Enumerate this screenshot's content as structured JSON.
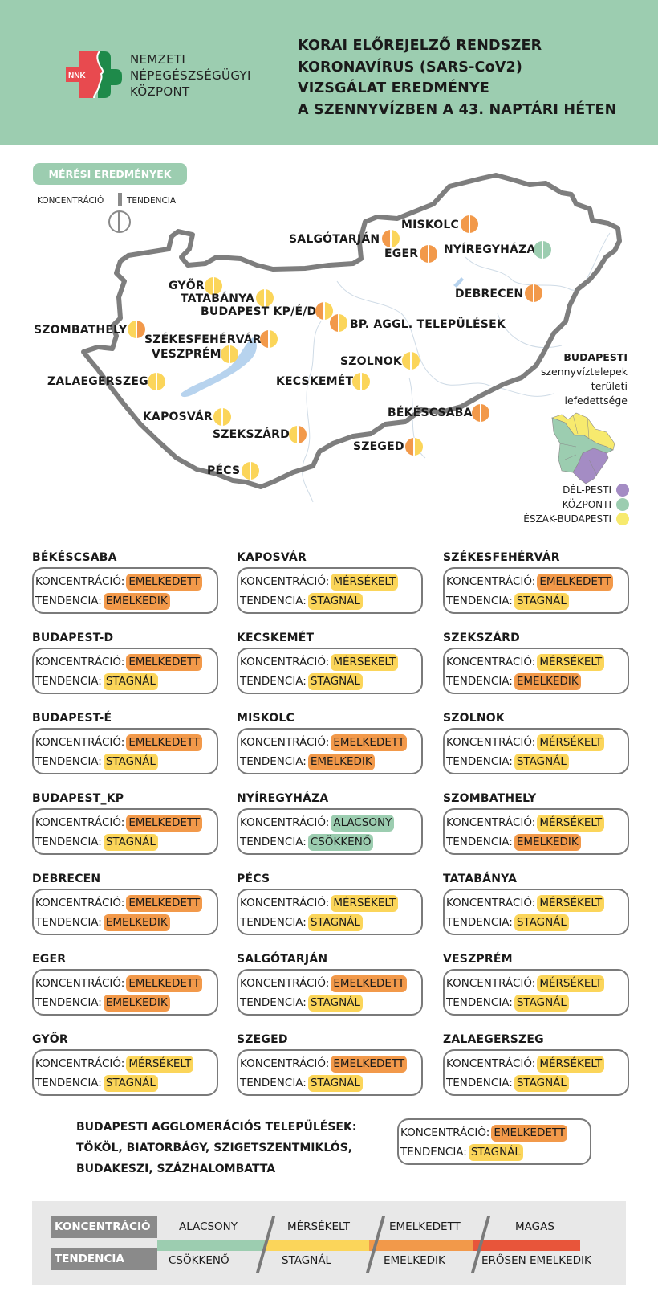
{
  "header": {
    "logo_abbr": "NNK",
    "org_name_lines": [
      "NEMZETI",
      "NÉPEGÉSZSÉGÜGYI",
      "KÖZPONT"
    ],
    "title_lines": [
      "KORAI ELŐREJELZŐ RENDSZER",
      "KORONAVÍRUS (SARS-CoV2)",
      "VIZSGÁLAT EREDMÉNYE",
      "A SZENNYVÍZBEN A 43. NAPTÁRI HÉTEN"
    ]
  },
  "map_section": {
    "badge": "MÉRÉSI EREDMÉNYEK",
    "legend_left": "KONCENTRÁCIÓ",
    "legend_right": "TENDENCIA",
    "cities": [
      {
        "name": "MISKOLC",
        "conc": "emelkedett",
        "trend": "emelkedik"
      },
      {
        "name": "SALGÓTARJÁN",
        "conc": "emelkedett",
        "trend": "stagnal"
      },
      {
        "name": "EGER",
        "conc": "emelkedett",
        "trend": "emelkedik"
      },
      {
        "name": "NYÍREGYHÁZA",
        "conc": "alacsony",
        "trend": "csokkeno"
      },
      {
        "name": "GYŐR",
        "conc": "merseklet",
        "trend": "stagnal"
      },
      {
        "name": "TATABÁNYA",
        "conc": "merseklet",
        "trend": "stagnal"
      },
      {
        "name": "BUDAPEST KP/É/D",
        "conc": "emelkedett",
        "trend": "stagnal"
      },
      {
        "name": "DEBRECEN",
        "conc": "emelkedett",
        "trend": "emelkedik"
      },
      {
        "name": "BP. AGGL. TELEPÜLÉSEK",
        "conc": "emelkedett",
        "trend": "stagnal"
      },
      {
        "name": "SZOMBATHELY",
        "conc": "merseklet",
        "trend": "emelkedik"
      },
      {
        "name": "SZÉKESFEHÉRVÁR",
        "conc": "emelkedett",
        "trend": "stagnal"
      },
      {
        "name": "VESZPRÉM",
        "conc": "merseklet",
        "trend": "stagnal"
      },
      {
        "name": "SZOLNOK",
        "conc": "merseklet",
        "trend": "stagnal"
      },
      {
        "name": "ZALAEGERSZEG",
        "conc": "merseklet",
        "trend": "stagnal"
      },
      {
        "name": "KECSKEMÉT",
        "conc": "merseklet",
        "trend": "stagnal"
      },
      {
        "name": "BÉKÉSCSABA",
        "conc": "emelkedett",
        "trend": "emelkedik"
      },
      {
        "name": "KAPOSVÁR",
        "conc": "merseklet",
        "trend": "stagnal"
      },
      {
        "name": "SZEKSZÁRD",
        "conc": "merseklet",
        "trend": "emelkedik"
      },
      {
        "name": "SZEGED",
        "conc": "emelkedett",
        "trend": "stagnal"
      },
      {
        "name": "PÉCS",
        "conc": "merseklet",
        "trend": "stagnal"
      }
    ],
    "budapest_legend": {
      "title": "BUDAPESTI",
      "subtitle_lines": [
        "szennyvíztelepek",
        "területi",
        "lefedettsége"
      ],
      "items": [
        {
          "label": "DÉL-PESTI",
          "color": "#a48cc4"
        },
        {
          "label": "KÖZPONTI",
          "color": "#9ccdb0"
        },
        {
          "label": "ÉSZAK-BUDAPESTI",
          "color": "#f7ea6e"
        }
      ]
    }
  },
  "labels": {
    "concentration": "KONCENTRÁCIÓ:",
    "trend": "TENDENCIA:"
  },
  "cards": [
    {
      "city": "BÉKÉSCSABA",
      "concentration": "EMELKEDETT",
      "trend": "EMELKEDIK"
    },
    {
      "city": "KAPOSVÁR",
      "concentration": "MÉRSÉKELT",
      "trend": "STAGNÁL"
    },
    {
      "city": "SZÉKESFEHÉRVÁR",
      "concentration": "EMELKEDETT",
      "trend": "STAGNÁL"
    },
    {
      "city": "BUDAPEST-D",
      "concentration": "EMELKEDETT",
      "trend": "STAGNÁL"
    },
    {
      "city": "KECSKEMÉT",
      "concentration": "MÉRSÉKELT",
      "trend": "STAGNÁL"
    },
    {
      "city": "SZEKSZÁRD",
      "concentration": "MÉRSÉKELT",
      "trend": "EMELKEDIK"
    },
    {
      "city": "BUDAPEST-É",
      "concentration": "EMELKEDETT",
      "trend": "STAGNÁL"
    },
    {
      "city": "MISKOLC",
      "concentration": "EMELKEDETT",
      "trend": "EMELKEDIK"
    },
    {
      "city": "SZOLNOK",
      "concentration": "MÉRSÉKELT",
      "trend": "STAGNÁL"
    },
    {
      "city": "BUDAPEST_KP",
      "concentration": "EMELKEDETT",
      "trend": "STAGNÁL"
    },
    {
      "city": "NYÍREGYHÁZA",
      "concentration": "ALACSONY",
      "trend": "CSÖKKENŐ"
    },
    {
      "city": "SZOMBATHELY",
      "concentration": "MÉRSÉKELT",
      "trend": "EMELKEDIK"
    },
    {
      "city": "DEBRECEN",
      "concentration": "EMELKEDETT",
      "trend": "EMELKEDIK"
    },
    {
      "city": "PÉCS",
      "concentration": "MÉRSÉKELT",
      "trend": "STAGNÁL"
    },
    {
      "city": "TATABÁNYA",
      "concentration": "MÉRSÉKELT",
      "trend": "STAGNÁL"
    },
    {
      "city": "EGER",
      "concentration": "EMELKEDETT",
      "trend": "EMELKEDIK"
    },
    {
      "city": "SALGÓTARJÁN",
      "concentration": "EMELKEDETT",
      "trend": "STAGNÁL"
    },
    {
      "city": "VESZPRÉM",
      "concentration": "MÉRSÉKELT",
      "trend": "STAGNÁL"
    },
    {
      "city": "GYŐR",
      "concentration": "MÉRSÉKELT",
      "trend": "STAGNÁL"
    },
    {
      "city": "SZEGED",
      "concentration": "EMELKEDETT",
      "trend": "STAGNÁL"
    },
    {
      "city": "ZALAEGERSZEG",
      "concentration": "MÉRSÉKELT",
      "trend": "STAGNÁL"
    }
  ],
  "agglomeration": {
    "lines": [
      "BUDAPESTI AGGLOMERÁCIÓS TELEPÜLÉSEK:",
      "TÖKÖL, BIATORBÁGY, SZIGETSZENTMIKLÓS,",
      "BUDAKESZI, SZÁZHALOMBATTA"
    ],
    "concentration": "EMELKEDETT",
    "trend": "STAGNÁL"
  },
  "scale_legend": {
    "concentration_label": "KONCENTRÁCIÓ",
    "trend_label": "TENDENCIA",
    "levels": [
      {
        "concentration": "ALACSONY",
        "trend": "CSÖKKENŐ",
        "color": "#9ccdb0"
      },
      {
        "concentration": "MÉRSÉKELT",
        "trend": "STAGNÁL",
        "color": "#fbd55a"
      },
      {
        "concentration": "EMELKEDETT",
        "trend": "EMELKEDIK",
        "color": "#f2994a"
      },
      {
        "concentration": "MAGAS",
        "trend": "ERŐSEN EMELKEDIK",
        "color": "#e8553a"
      }
    ]
  },
  "colors": {
    "header_bg": "#9ccdb0",
    "alacsony": "#9ccdb0",
    "merseklet": "#fbd55a",
    "emelkedett": "#f2994a",
    "magas": "#e8553a",
    "border_gray": "#7a7a7a"
  }
}
